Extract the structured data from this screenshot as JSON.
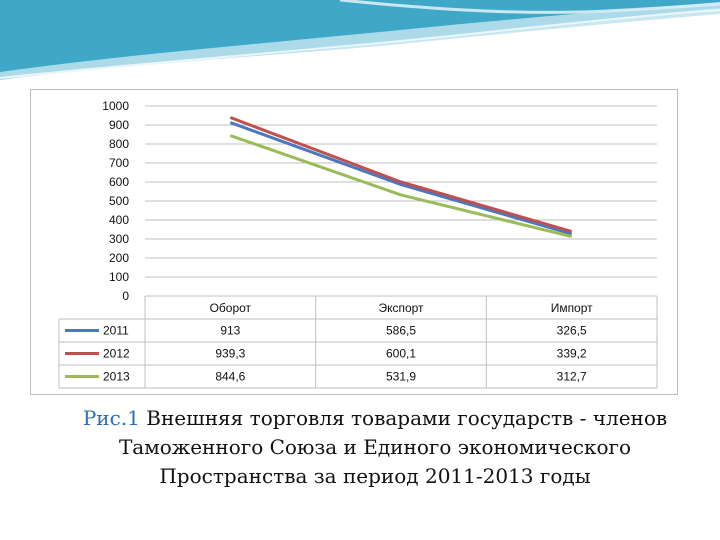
{
  "theme": {
    "header_color": "#3fa7c8",
    "header_light": "#d8eef5",
    "gridline_color": "#bfbfbf",
    "axis_text_color": "#111111"
  },
  "chart_data": {
    "type": "line",
    "title": "",
    "xlabel": "",
    "ylabel": "",
    "ylim": [
      0,
      1000
    ],
    "ytick_step": 100,
    "yticks": [
      "1000",
      "900",
      "800",
      "700",
      "600",
      "500",
      "400",
      "300",
      "200",
      "100",
      "0"
    ],
    "grid": true,
    "legend_position": "data-table-left",
    "categories": [
      "Оборот",
      "Экспорт",
      "Импорт"
    ],
    "series": [
      {
        "name": "2011",
        "color": "#4a78bf",
        "values": [
          913,
          586.5,
          326.5
        ],
        "labels": [
          "913",
          "586,5",
          "326,5"
        ]
      },
      {
        "name": "2012",
        "color": "#c0504d",
        "values": [
          939.3,
          600.1,
          339.2
        ],
        "labels": [
          "939,3",
          "600,1",
          "339,2"
        ]
      },
      {
        "name": "2013",
        "color": "#9bbb59",
        "values": [
          844.6,
          531.9,
          312.7
        ],
        "labels": [
          "844,6",
          "531,9",
          "312,7"
        ]
      }
    ]
  },
  "caption": {
    "figure_label": "Рис.1",
    "line1": " Внешняя торговля товарами государств - членов",
    "line2": "Таможенного Союза и Единого экономического",
    "line3": "Пространства за период 2011-2013 годы"
  }
}
